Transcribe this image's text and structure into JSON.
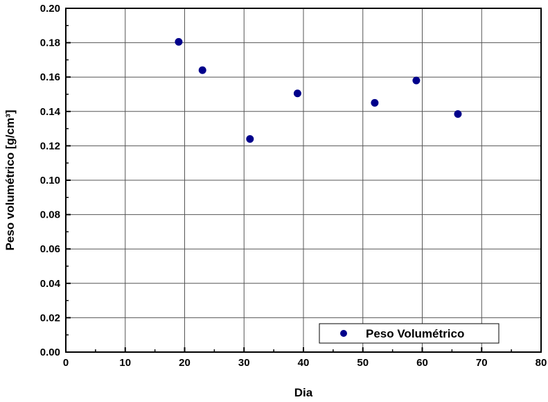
{
  "chart_data": {
    "type": "scatter",
    "title": "",
    "xlabel": "Dia",
    "ylabel": "Peso volumétrico [g/cm³]",
    "xlim": [
      0,
      80
    ],
    "ylim": [
      0,
      0.2
    ],
    "x_ticks": [
      "0",
      "10",
      "20",
      "30",
      "40",
      "50",
      "60",
      "70",
      "80"
    ],
    "y_ticks": [
      "0.00",
      "0.02",
      "0.04",
      "0.06",
      "0.08",
      "0.10",
      "0.12",
      "0.14",
      "0.16",
      "0.18",
      "0.20"
    ],
    "grid": true,
    "legend_position": "bottom-right",
    "series": [
      {
        "name": "Peso Volumétrico",
        "color": "#00008b",
        "marker": "circle",
        "points": [
          {
            "x": 19,
            "y": 0.1805
          },
          {
            "x": 23,
            "y": 0.164
          },
          {
            "x": 31,
            "y": 0.124
          },
          {
            "x": 39,
            "y": 0.1505
          },
          {
            "x": 52,
            "y": 0.145
          },
          {
            "x": 59,
            "y": 0.158
          },
          {
            "x": 66,
            "y": 0.1385
          }
        ]
      }
    ]
  }
}
